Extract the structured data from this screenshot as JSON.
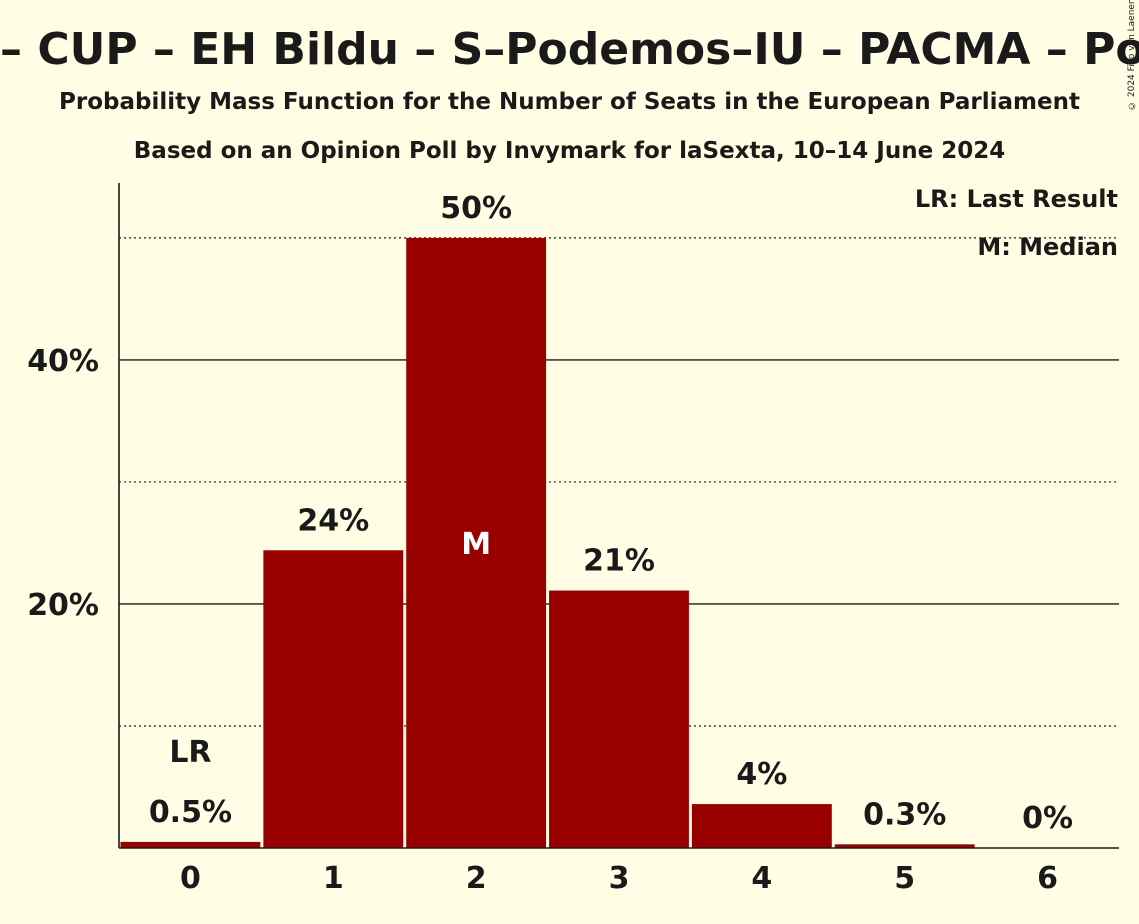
{
  "title": "– CUP – EH Bildu – S–Podemos–IU – PACMA – Podemos",
  "subtitle": "Probability Mass Function for the Number of Seats in the European Parliament",
  "source": "Based on an Opinion Poll by Invymark for laSexta, 10–14 June 2024",
  "copyright": "© 2024 Filip van Laenen",
  "legend": {
    "last_result": "LR: Last Result",
    "median": "M: Median"
  },
  "colors": {
    "bar": "#990000",
    "background": "#fffde3"
  },
  "chart_data": {
    "type": "bar",
    "categories": [
      "0",
      "1",
      "2",
      "3",
      "4",
      "5",
      "6"
    ],
    "values": [
      0.5,
      24.4,
      50.0,
      21.1,
      3.6,
      0.3,
      0.0
    ],
    "value_labels": [
      "0.5%",
      "24%",
      "50%",
      "21%",
      "4%",
      "0.3%",
      "0%"
    ],
    "ylim": [
      0,
      54.5
    ],
    "yticks": [
      20,
      40
    ],
    "ytick_labels": [
      "20%",
      "40%"
    ],
    "minor_gridlines": [
      10,
      30,
      50
    ],
    "last_result_index": 0,
    "last_result_label": "LR",
    "median_index": 2,
    "median_label": "M"
  }
}
